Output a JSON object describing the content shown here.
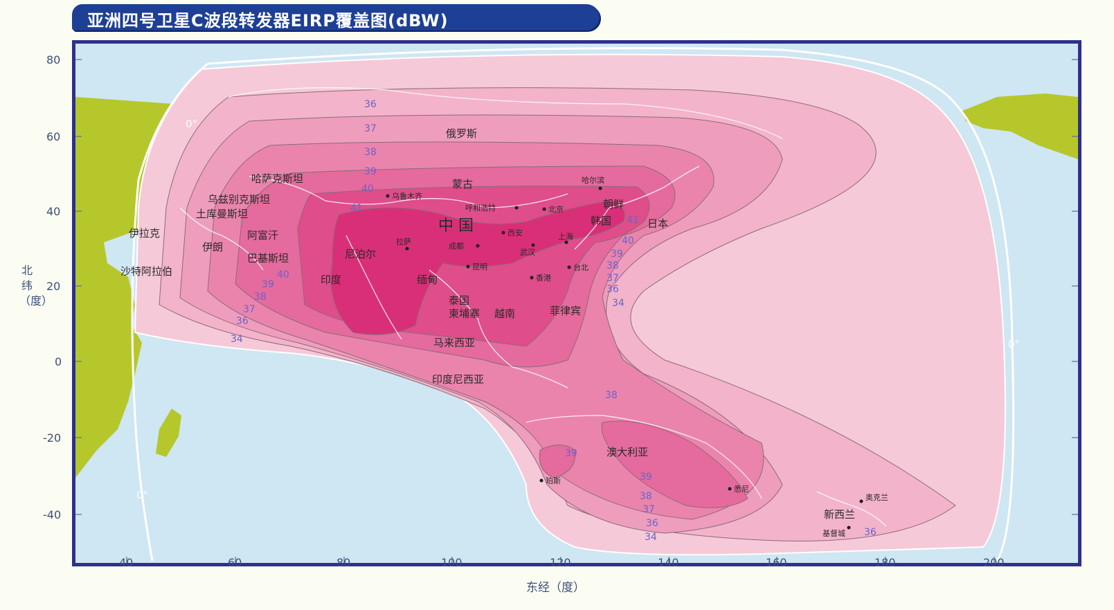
{
  "title": "亚洲四号卫星C波段转发器EIRP覆盖图(dBW)",
  "x_axis": {
    "label": "东经（度）",
    "ticks": [
      "40",
      "60",
      "80",
      "100",
      "120",
      "140",
      "160",
      "180",
      "200"
    ]
  },
  "y_axis": {
    "label": "北纬（度）",
    "ticks": [
      "80",
      "60",
      "40",
      "20",
      "0",
      "-20",
      "-40"
    ]
  },
  "zero_elevation_labels": [
    "0°",
    "0°",
    "0°"
  ],
  "countries": [
    {
      "name": "俄罗斯"
    },
    {
      "name": "哈萨克斯坦"
    },
    {
      "name": "蒙古"
    },
    {
      "name": "乌兹别克斯坦"
    },
    {
      "name": "土库曼斯坦"
    },
    {
      "name": "伊拉克"
    },
    {
      "name": "伊朗"
    },
    {
      "name": "阿富汗"
    },
    {
      "name": "巴基斯坦"
    },
    {
      "name": "沙特阿拉伯"
    },
    {
      "name": "中 国"
    },
    {
      "name": "朝鲜"
    },
    {
      "name": "韩国"
    },
    {
      "name": "日本"
    },
    {
      "name": "印度"
    },
    {
      "name": "尼泊尔"
    },
    {
      "name": "缅甸"
    },
    {
      "name": "泰国"
    },
    {
      "name": "柬埔寨"
    },
    {
      "name": "越南"
    },
    {
      "name": "菲律宾"
    },
    {
      "name": "马来西亚"
    },
    {
      "name": "印度尼西亚"
    },
    {
      "name": "澳大利亚"
    },
    {
      "name": "新西兰"
    }
  ],
  "cities": [
    {
      "name": "乌鲁木齐"
    },
    {
      "name": "呼和浩特"
    },
    {
      "name": "北京"
    },
    {
      "name": "哈尔滨"
    },
    {
      "name": "西安"
    },
    {
      "name": "拉萨"
    },
    {
      "name": "成都"
    },
    {
      "name": "武汉"
    },
    {
      "name": "上海"
    },
    {
      "name": "昆明"
    },
    {
      "name": "香港"
    },
    {
      "name": "台北"
    },
    {
      "name": "珀斯"
    },
    {
      "name": "悉尼"
    },
    {
      "name": "奥克兰"
    },
    {
      "name": "基督城"
    }
  ],
  "contour_levels": [
    "34",
    "36",
    "37",
    "38",
    "39",
    "40",
    "41"
  ],
  "contour_labels": [
    "36",
    "37",
    "38",
    "39",
    "40",
    "41",
    "40",
    "39",
    "38",
    "37",
    "36",
    "34",
    "41",
    "40",
    "39",
    "38",
    "37",
    "36",
    "34",
    "38",
    "39",
    "39",
    "38",
    "37",
    "36",
    "34",
    "36"
  ],
  "colors": {
    "ocean": "#cfe6f3",
    "land": "#b6c72b",
    "frame": "#2e2f8f",
    "level_34": "#f6c9d8",
    "level_36": "#f3b3cb",
    "level_37": "#ef9dbd",
    "level_38": "#ea84ad",
    "level_39": "#e56a9d",
    "level_40": "#df4d8a",
    "level_41": "#d92f78",
    "contour_label": "#6a63c8"
  }
}
